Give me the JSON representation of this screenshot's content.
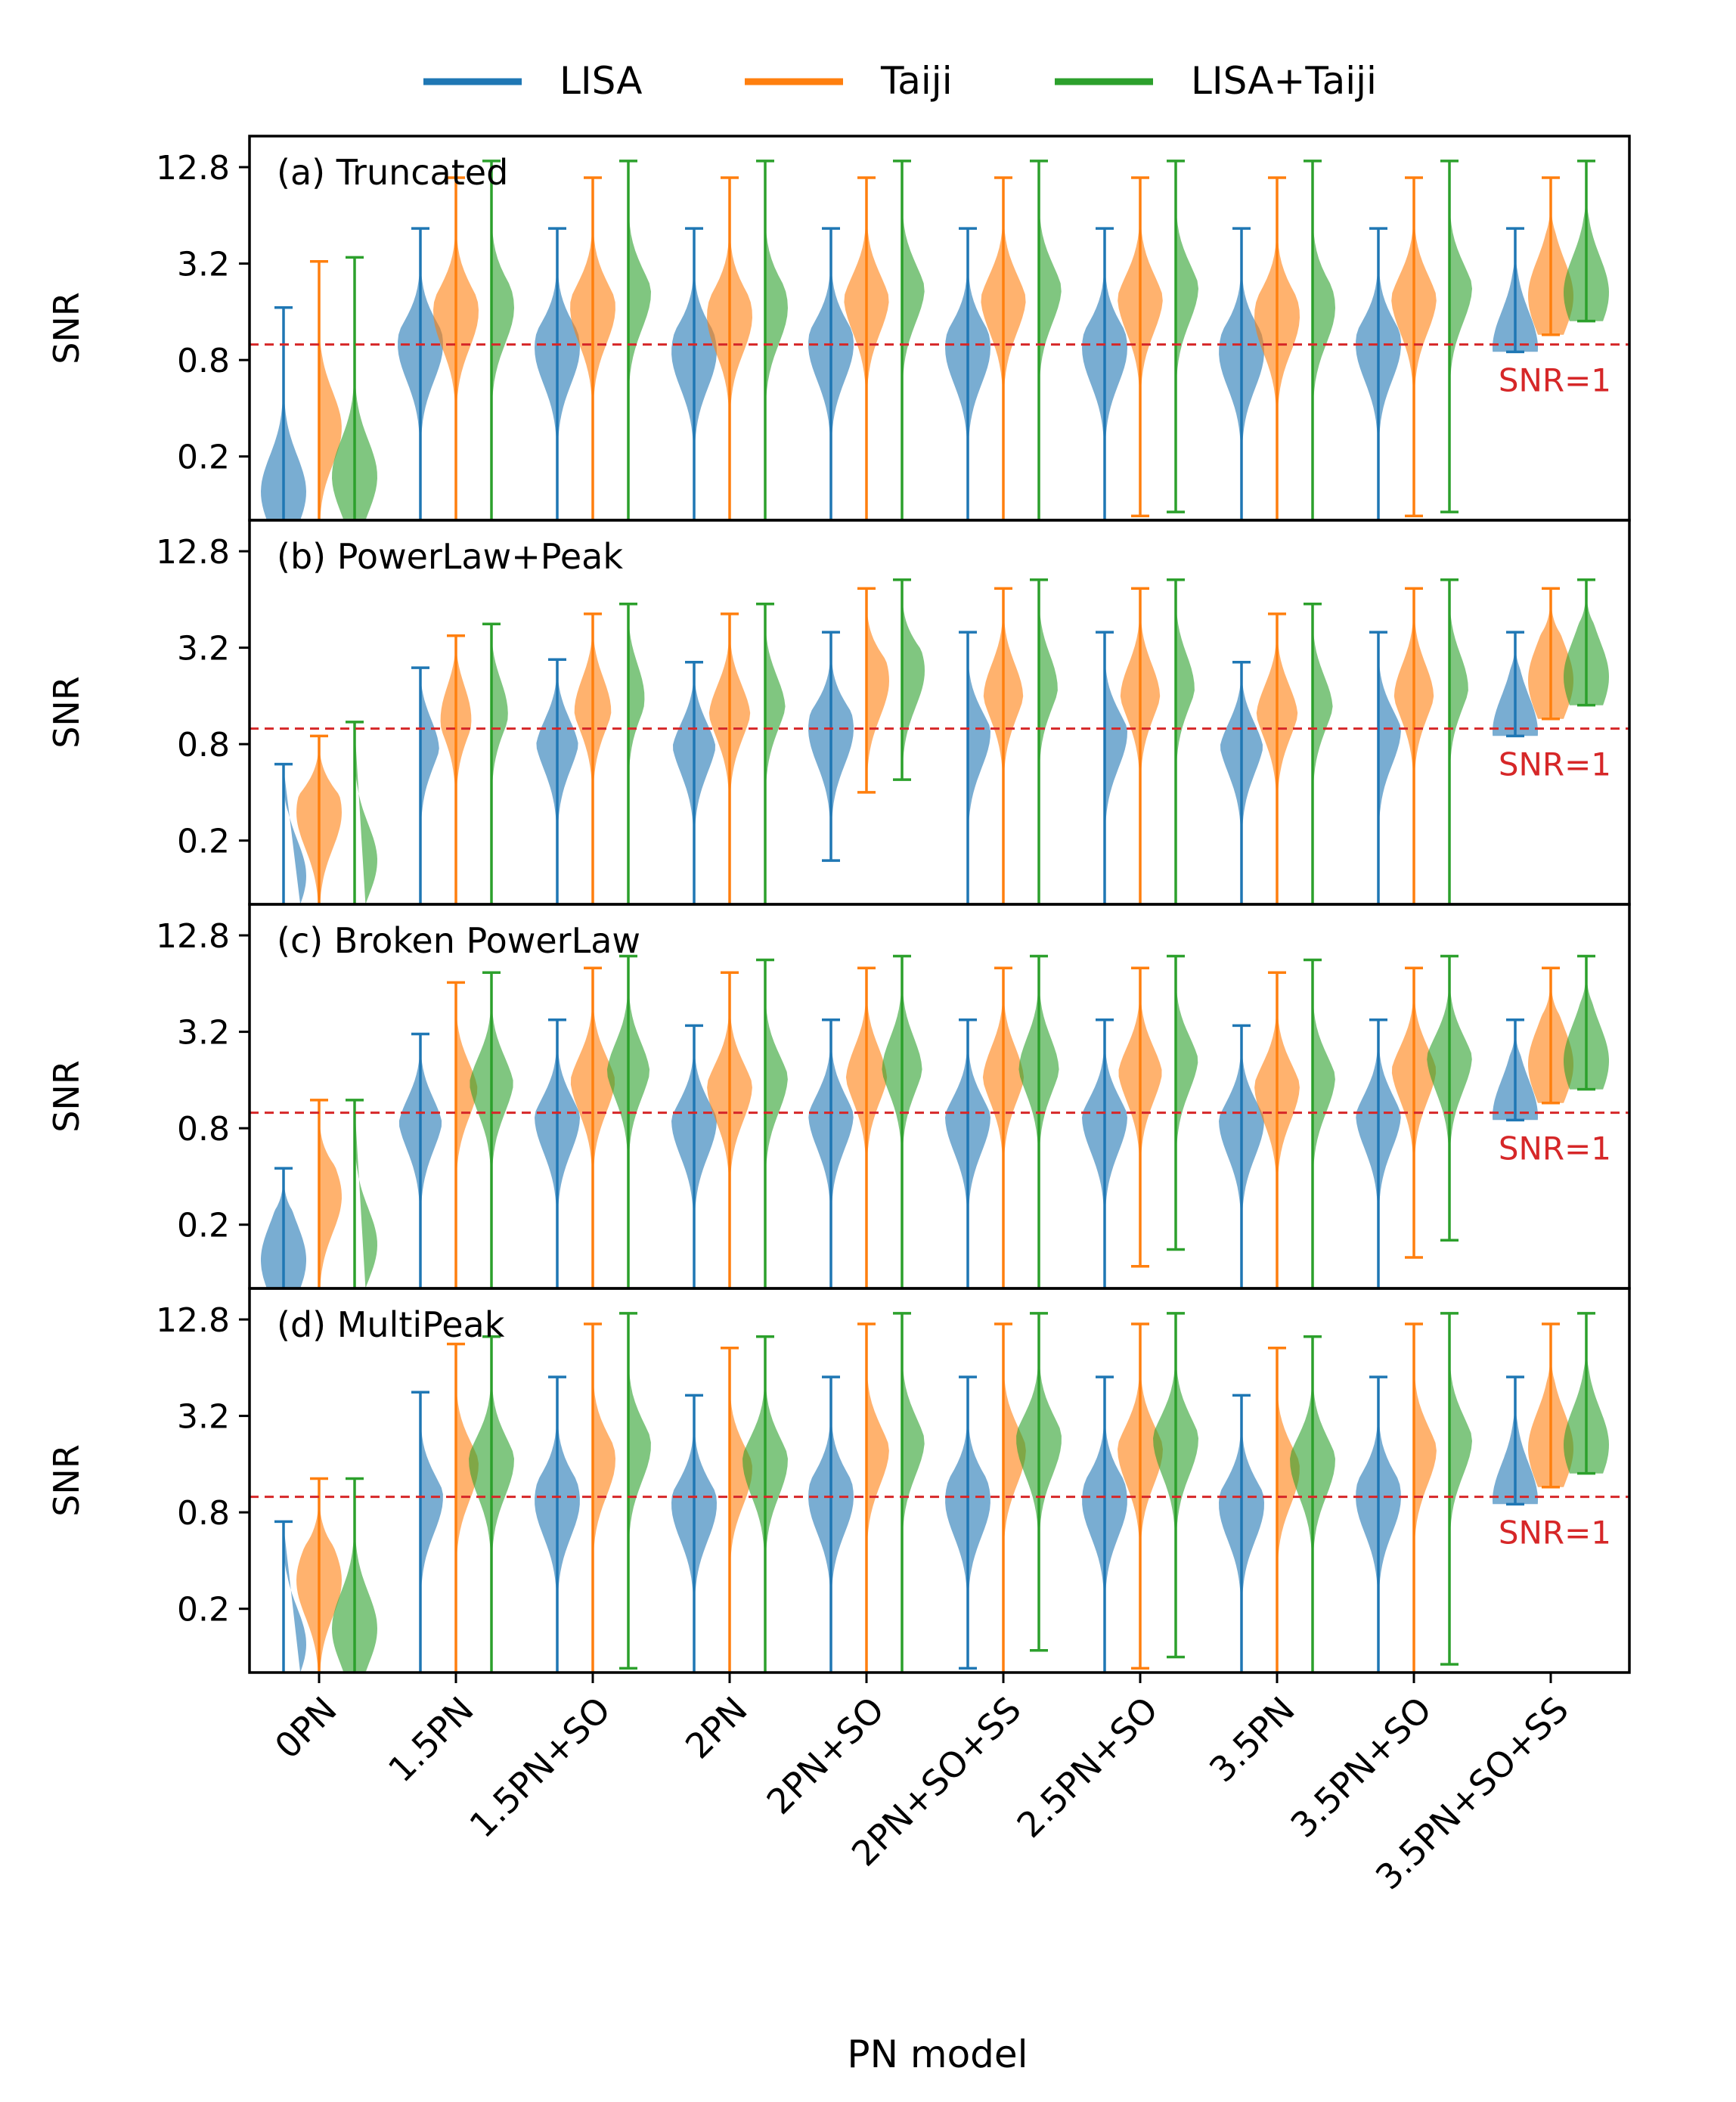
{
  "chart_data": {
    "type": "violin",
    "xlabel": "PN model",
    "ylabel": "SNR",
    "yscale": "log2",
    "ylim": [
      0.08,
      20
    ],
    "yticks": [
      0.2,
      0.8,
      3.2,
      12.8
    ],
    "ytick_labels": [
      "0.2",
      "0.8",
      "3.2",
      "12.8"
    ],
    "categories": [
      "0PN",
      "1.5PN",
      "1.5PN+SO",
      "2PN",
      "2PN+SO",
      "2PN+SO+SS",
      "2.5PN+SO",
      "3.5PN",
      "3.5PN+SO",
      "3.5PN+SO+SS"
    ],
    "legend": {
      "placement": "top-center",
      "entries": [
        {
          "label": "LISA",
          "color": "#1f77b4"
        },
        {
          "label": "Taiji",
          "color": "#ff7f0e"
        },
        {
          "label": "LISA+Taiji",
          "color": "#2ca02c"
        }
      ]
    },
    "reference_line": {
      "y": 1.0,
      "label": "SNR=1",
      "color": "#d62728",
      "style": "dashed"
    },
    "panels": [
      {
        "title": "(a) Truncated",
        "series": [
          {
            "name": "LISA",
            "min": [
              0.08,
              0.08,
              0.08,
              0.08,
              0.08,
              0.08,
              0.08,
              0.08,
              0.08,
              0.9
            ],
            "max": [
              1.7,
              5.3,
              5.3,
              5.3,
              5.3,
              5.3,
              5.3,
              5.3,
              5.3,
              5.3
            ],
            "mode": [
              0.12,
              1.0,
              0.95,
              0.9,
              1.0,
              0.95,
              0.95,
              0.9,
              1.0,
              0.95
            ]
          },
          {
            "name": "Taiji",
            "min": [
              0.08,
              0.08,
              0.08,
              0.08,
              0.08,
              0.08,
              0.085,
              0.08,
              0.085,
              1.15
            ],
            "max": [
              3.3,
              11,
              11,
              11,
              11,
              11,
              11,
              11,
              11,
              11
            ],
            "mode": [
              0.3,
              1.6,
              1.7,
              1.5,
              2.0,
              2.0,
              2.0,
              1.5,
              2.0,
              2.0
            ]
          },
          {
            "name": "LISA+Taiji",
            "min": [
              0.08,
              0.08,
              0.08,
              0.08,
              0.08,
              0.08,
              0.09,
              0.08,
              0.09,
              1.4
            ],
            "max": [
              3.5,
              14,
              14,
              14,
              14,
              14,
              14,
              14,
              14,
              14
            ],
            "mode": [
              0.15,
              1.7,
              2.1,
              1.7,
              2.3,
              2.3,
              2.3,
              1.7,
              2.3,
              2.1
            ]
          }
        ]
      },
      {
        "title": "(b) PowerLaw+Peak",
        "series": [
          {
            "name": "LISA",
            "min": [
              0.08,
              0.08,
              0.08,
              0.08,
              0.15,
              0.08,
              0.08,
              0.08,
              0.08,
              0.9
            ],
            "max": [
              0.6,
              2.4,
              2.7,
              2.6,
              4.0,
              4.0,
              4.0,
              2.6,
              4.0,
              4.0
            ],
            "mode": [
              0.12,
              1.0,
              0.95,
              0.9,
              1.0,
              0.95,
              0.95,
              0.9,
              1.0,
              0.95
            ]
          },
          {
            "name": "Taiji",
            "min": [
              0.08,
              0.08,
              0.08,
              0.08,
              0.4,
              0.08,
              0.08,
              0.08,
              0.08,
              1.15
            ],
            "max": [
              0.9,
              3.8,
              5.2,
              5.2,
              7.5,
              7.5,
              7.5,
              5.2,
              7.5,
              7.5
            ],
            "mode": [
              0.3,
              1.6,
              1.7,
              1.5,
              2.0,
              2.0,
              2.0,
              1.5,
              2.0,
              2.0
            ]
          },
          {
            "name": "LISA+Taiji",
            "min": [
              0.08,
              0.08,
              0.08,
              0.08,
              0.48,
              0.08,
              0.08,
              0.08,
              0.08,
              1.4
            ],
            "max": [
              1.1,
              4.5,
              6.0,
              6.0,
              8.5,
              8.5,
              8.5,
              6.0,
              8.5,
              8.5
            ],
            "mode": [
              0.15,
              1.7,
              2.1,
              1.7,
              2.3,
              2.3,
              2.3,
              1.7,
              2.3,
              2.1
            ]
          }
        ]
      },
      {
        "title": "(c) Broken PowerLaw",
        "series": [
          {
            "name": "LISA",
            "min": [
              0.08,
              0.08,
              0.08,
              0.08,
              0.08,
              0.08,
              0.08,
              0.08,
              0.08,
              0.9
            ],
            "max": [
              0.45,
              3.1,
              3.8,
              3.5,
              3.8,
              3.8,
              3.8,
              3.5,
              3.8,
              3.8
            ],
            "mode": [
              0.12,
              1.0,
              0.95,
              0.9,
              1.0,
              0.95,
              0.95,
              0.9,
              1.0,
              0.95
            ]
          },
          {
            "name": "Taiji",
            "min": [
              0.08,
              0.08,
              0.08,
              0.08,
              0.08,
              0.08,
              0.11,
              0.08,
              0.125,
              1.15
            ],
            "max": [
              1.2,
              6.5,
              8.0,
              7.5,
              8.0,
              8.0,
              8.0,
              7.5,
              8.0,
              8.0
            ],
            "mode": [
              0.3,
              1.6,
              1.7,
              1.5,
              2.0,
              2.0,
              2.0,
              1.5,
              2.0,
              2.0
            ]
          },
          {
            "name": "LISA+Taiji",
            "min": [
              0.08,
              0.08,
              0.08,
              0.08,
              0.08,
              0.08,
              0.14,
              0.08,
              0.16,
              1.4
            ],
            "max": [
              1.2,
              7.5,
              9.5,
              9.0,
              9.5,
              9.5,
              9.5,
              9.0,
              9.5,
              9.5
            ],
            "mode": [
              0.15,
              1.7,
              2.1,
              1.7,
              2.3,
              2.3,
              2.3,
              1.7,
              2.3,
              2.1
            ]
          }
        ]
      },
      {
        "title": "(d) MultiPeak",
        "series": [
          {
            "name": "LISA",
            "min": [
              0.08,
              0.08,
              0.08,
              0.08,
              0.08,
              0.085,
              0.08,
              0.08,
              0.08,
              0.9
            ],
            "max": [
              0.7,
              4.5,
              5.6,
              4.3,
              5.6,
              5.6,
              5.6,
              4.3,
              5.6,
              5.6
            ],
            "mode": [
              0.12,
              1.0,
              0.95,
              0.9,
              1.0,
              0.95,
              0.95,
              0.9,
              1.0,
              0.95
            ]
          },
          {
            "name": "Taiji",
            "min": [
              0.08,
              0.08,
              0.08,
              0.08,
              0.08,
              0.08,
              0.085,
              0.08,
              0.08,
              1.15
            ],
            "max": [
              1.3,
              9.0,
              12,
              8.5,
              12,
              12,
              12,
              8.5,
              12,
              12
            ],
            "mode": [
              0.3,
              1.6,
              1.7,
              1.5,
              2.0,
              2.0,
              2.0,
              1.5,
              2.0,
              2.0
            ]
          },
          {
            "name": "LISA+Taiji",
            "min": [
              0.08,
              0.08,
              0.085,
              0.08,
              0.08,
              0.11,
              0.1,
              0.08,
              0.09,
              1.4
            ],
            "max": [
              1.3,
              10,
              14,
              10,
              14,
              14,
              14,
              10,
              14,
              14
            ],
            "mode": [
              0.15,
              1.7,
              2.1,
              1.7,
              2.3,
              2.3,
              2.3,
              1.7,
              2.3,
              2.1
            ]
          }
        ]
      }
    ]
  }
}
